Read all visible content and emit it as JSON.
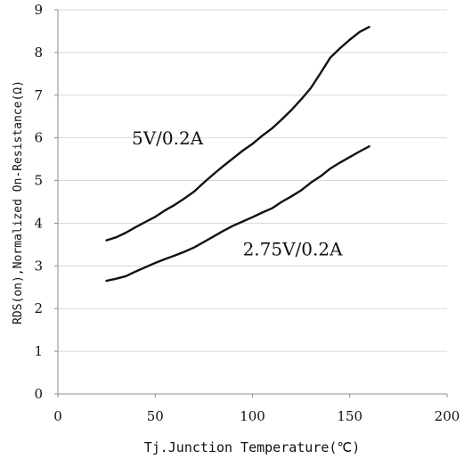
{
  "chart_data": {
    "type": "line",
    "xlabel": "Tj.Junction Temperature(℃)",
    "ylabel": "RDS(on),Normalized On-Resistance(Ω)",
    "xlim": [
      0,
      200
    ],
    "ylim": [
      0,
      9
    ],
    "x_ticks": [
      "0",
      "50",
      "100",
      "150",
      "200"
    ],
    "y_ticks": [
      "0",
      "1",
      "2",
      "3",
      "4",
      "5",
      "6",
      "7",
      "8",
      "9"
    ],
    "grid": "horizontal",
    "series": [
      {
        "name": "5V/0.2A",
        "x": [
          25,
          30,
          35,
          40,
          45,
          50,
          55,
          60,
          65,
          70,
          75,
          80,
          85,
          90,
          95,
          100,
          105,
          110,
          115,
          120,
          125,
          130,
          135,
          140,
          145,
          150,
          155,
          160
        ],
        "y": [
          3.6,
          3.67,
          3.78,
          3.91,
          4.03,
          4.15,
          4.3,
          4.43,
          4.58,
          4.74,
          4.95,
          5.15,
          5.34,
          5.52,
          5.7,
          5.86,
          6.05,
          6.22,
          6.43,
          6.65,
          6.9,
          7.17,
          7.52,
          7.88,
          8.1,
          8.3,
          8.48,
          8.6
        ]
      },
      {
        "name": "2.75V/0.2A",
        "x": [
          25,
          30,
          35,
          40,
          45,
          50,
          55,
          60,
          65,
          70,
          75,
          80,
          85,
          90,
          95,
          100,
          105,
          110,
          115,
          120,
          125,
          130,
          135,
          140,
          145,
          150,
          155,
          160
        ],
        "y": [
          2.65,
          2.7,
          2.76,
          2.87,
          2.97,
          3.07,
          3.16,
          3.24,
          3.33,
          3.43,
          3.56,
          3.69,
          3.82,
          3.94,
          4.04,
          4.14,
          4.25,
          4.35,
          4.5,
          4.63,
          4.77,
          4.95,
          5.1,
          5.28,
          5.42,
          5.55,
          5.68,
          5.8
        ]
      }
    ],
    "annotations": [
      {
        "text": "5V/0.2A",
        "x": 38,
        "y": 5.85
      },
      {
        "text": "2.75V/0.2A",
        "x": 95,
        "y": 3.25
      }
    ]
  },
  "colors": {
    "line": "#111111",
    "grid": "#d9d9d9",
    "axis": "#8c8c8c"
  }
}
